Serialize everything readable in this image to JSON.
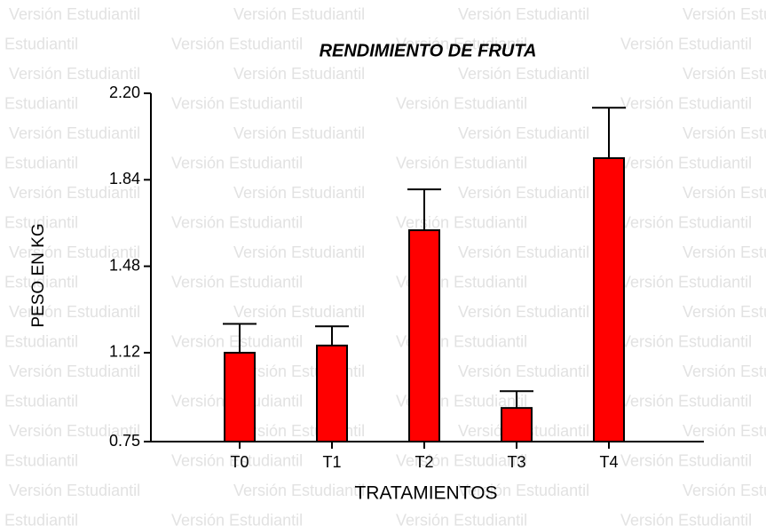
{
  "watermark": "Versión Estudiantil",
  "chart_data": {
    "type": "bar",
    "title": "RENDIMIENTO DE FRUTA",
    "x_label": "TRATAMIENTOS",
    "y_label": "PESO EN KG",
    "categories": [
      "T0",
      "T1",
      "T2",
      "T3",
      "T4"
    ],
    "values": [
      1.12,
      1.15,
      1.63,
      0.89,
      1.93
    ],
    "errors": [
      0.12,
      0.08,
      0.17,
      0.07,
      0.21
    ],
    "color": "#ff0000",
    "ylim": [
      0.75,
      2.2
    ],
    "yticks": [
      0.75,
      1.12,
      1.48,
      1.84,
      {
        "value": 2.2,
        "label": "2.20"
      }
    ]
  }
}
